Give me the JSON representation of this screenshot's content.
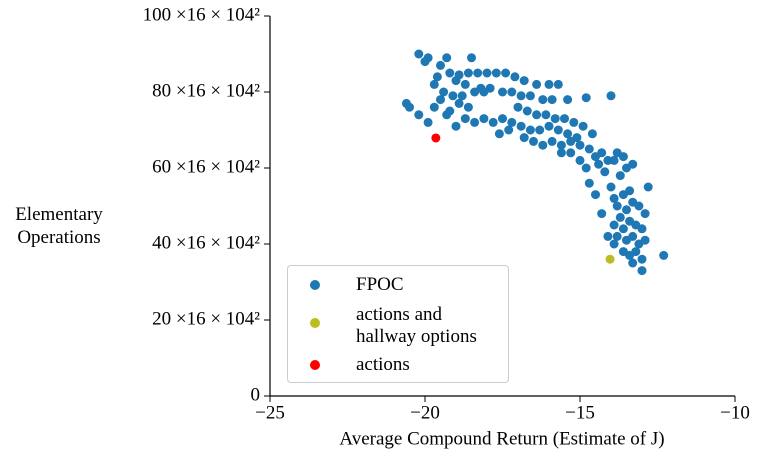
{
  "chart_data": {
    "type": "scatter",
    "xlabel": "Average Compound Return (Estimate of J)",
    "ylabel": "Elementary Operations",
    "xlim": [
      -25,
      -10
    ],
    "xticks": [
      {
        "value": -25,
        "label": "−25"
      },
      {
        "value": -20,
        "label": "−20"
      },
      {
        "value": -15,
        "label": "−15"
      },
      {
        "value": -10,
        "label": "−10"
      }
    ],
    "ylim": [
      0,
      100
    ],
    "yticks": [
      0,
      {
        "value": 20,
        "label": "20 ×16 × 104²"
      },
      {
        "value": 40,
        "label": "40 ×16 × 104²"
      },
      {
        "value": 60,
        "label": "60 ×16 × 104²"
      },
      {
        "value": 80,
        "label": "80 ×16 × 104²"
      },
      {
        "value": 100,
        "label": "100 ×16 × 104²"
      }
    ],
    "legend": "lower left",
    "series": [
      {
        "name": "FPOC",
        "color": "#1f77b4",
        "x": [
          -20.2,
          -19.9,
          -20,
          -19.3,
          -18.5,
          -19.5,
          -19.2,
          -18.9,
          -18.6,
          -18.3,
          -18.0,
          -17.7,
          -17.4,
          -17.1,
          -16.8,
          -16.4,
          -16.0,
          -15.7,
          -19.6,
          -19.0,
          -18.7,
          -18.2,
          -17.9,
          -17.5,
          -17.2,
          -16.9,
          -16.6,
          -16.2,
          -15.9,
          -15.4,
          -14.8,
          -14.0,
          -19.7,
          -19.4,
          -19.1,
          -18.8,
          -18.4,
          -18.1,
          -20.6,
          -20.5,
          -20.2,
          -19.9,
          -19.7,
          -19.5,
          -19.3,
          -19.0,
          -18.7,
          -18.4,
          -18.1,
          -17.8,
          -17.5,
          -17.2,
          -16.9,
          -16.6,
          -16.3,
          -16.0,
          -15.7,
          -15.4,
          -15.1,
          -17.0,
          -16.7,
          -16.4,
          -16.1,
          -15.8,
          -15.5,
          -15.2,
          -14.9,
          -14.6,
          -16.5,
          -16.2,
          -15.9,
          -15.6,
          -15.3,
          -15.0,
          -14.7,
          -14.5,
          -14.3,
          -14.1,
          -13.9,
          -13.6,
          -13.8,
          -14.4,
          -14.2,
          -14.0,
          -13.7,
          -13.5,
          -13.3,
          -13.9,
          -13.6,
          -13.4,
          -13.8,
          -13.5,
          -13.3,
          -13.1,
          -12.9,
          -12.8,
          -13.7,
          -13.9,
          -13.6,
          -13.4,
          -13.2,
          -13.0,
          -13.8,
          -13.5,
          -13.3,
          -13.1,
          -12.9,
          -13.9,
          -13.6,
          -13.4,
          -13.2,
          -13.0,
          -12.3,
          -13.0,
          -13.3,
          -14.1,
          -14.3,
          -14.5,
          -14.7,
          -15.0,
          -15.3,
          -15.6,
          -14.8,
          -16.8,
          -17.3,
          -17.6,
          -18.6,
          -18.9,
          -19.2
        ],
        "values": [
          90,
          89,
          88,
          89,
          89,
          87,
          85,
          84.5,
          85,
          85,
          85,
          85,
          85,
          84,
          83,
          82,
          82,
          82,
          84,
          83,
          82,
          81,
          81,
          80,
          80,
          79,
          79,
          78,
          78,
          78,
          78.5,
          79,
          82,
          80,
          79,
          79,
          80,
          80,
          77,
          76,
          74,
          72,
          76,
          78,
          74,
          71,
          73,
          72,
          73,
          72,
          73,
          72,
          71,
          70,
          70,
          71,
          70,
          69,
          68,
          76,
          75,
          74,
          74,
          73,
          73,
          72,
          71,
          69,
          67,
          66,
          67,
          66,
          67,
          66,
          65,
          63,
          64,
          62,
          62,
          63,
          64,
          61,
          59,
          55,
          58,
          60,
          61,
          52,
          53,
          54,
          50,
          49,
          51,
          50,
          48,
          55,
          47,
          45,
          44,
          46,
          45,
          44,
          42,
          41,
          42,
          40,
          41,
          40,
          38,
          37,
          38,
          36,
          37,
          33,
          35,
          42,
          48,
          53,
          56,
          62,
          64,
          64,
          60,
          68,
          70,
          69,
          76,
          77,
          75
        ]
      },
      {
        "name": "actions and hallway options",
        "color": "#bcbd22",
        "x": [
          -14.03
        ],
        "values": [
          36
        ]
      },
      {
        "name": "actions",
        "color": "#ff0000",
        "x": [
          -19.65
        ],
        "values": [
          67.9
        ]
      }
    ]
  }
}
